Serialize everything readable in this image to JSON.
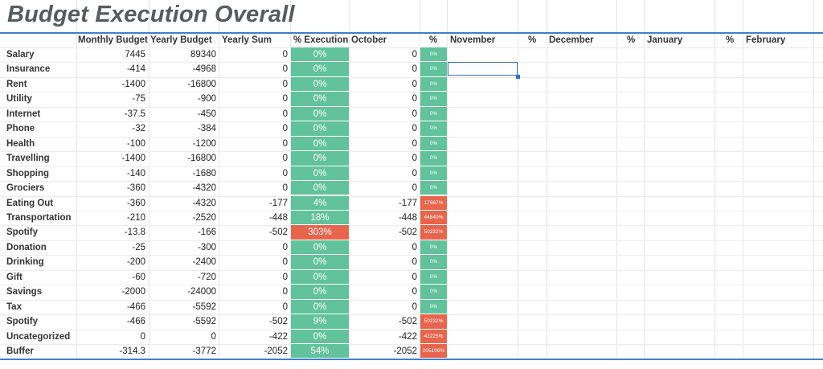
{
  "title": "Budget Execution Overall",
  "colors": {
    "green": "#62c29b",
    "red": "#e8654d",
    "accent": "#3f7fcf"
  },
  "headers": {
    "monthly_budget": "Monthly Budget",
    "yearly_budget": "Yearly Budget",
    "yearly_sum": "Yearly Sum",
    "execution": "% Execution",
    "october": "October",
    "pct1": "%",
    "november": "November",
    "pct2": "%",
    "december": "December",
    "pct3": "%",
    "january": "January",
    "pct4": "%",
    "february": "February"
  },
  "rows": [
    {
      "label": "Salary",
      "monthly": "7445",
      "yearly": "89340",
      "sum": "0",
      "exec": "0%",
      "exec_status": "green",
      "oct": "0",
      "oct_pct": "0%",
      "oct_status": "green"
    },
    {
      "label": "Insurance",
      "monthly": "-414",
      "yearly": "-4968",
      "sum": "0",
      "exec": "0%",
      "exec_status": "green",
      "oct": "0",
      "oct_pct": "0%",
      "oct_status": "green"
    },
    {
      "label": "Rent",
      "monthly": "-1400",
      "yearly": "-16800",
      "sum": "0",
      "exec": "0%",
      "exec_status": "green",
      "oct": "0",
      "oct_pct": "0%",
      "oct_status": "green"
    },
    {
      "label": "Utility",
      "monthly": "-75",
      "yearly": "-900",
      "sum": "0",
      "exec": "0%",
      "exec_status": "green",
      "oct": "0",
      "oct_pct": "0%",
      "oct_status": "green"
    },
    {
      "label": "Internet",
      "monthly": "-37.5",
      "yearly": "-450",
      "sum": "0",
      "exec": "0%",
      "exec_status": "green",
      "oct": "0",
      "oct_pct": "0%",
      "oct_status": "green"
    },
    {
      "label": "Phone",
      "monthly": "-32",
      "yearly": "-384",
      "sum": "0",
      "exec": "0%",
      "exec_status": "green",
      "oct": "0",
      "oct_pct": "0%",
      "oct_status": "green"
    },
    {
      "label": "Health",
      "monthly": "-100",
      "yearly": "-1200",
      "sum": "0",
      "exec": "0%",
      "exec_status": "green",
      "oct": "0",
      "oct_pct": "0%",
      "oct_status": "green"
    },
    {
      "label": "Travelling",
      "monthly": "-1400",
      "yearly": "-16800",
      "sum": "0",
      "exec": "0%",
      "exec_status": "green",
      "oct": "0",
      "oct_pct": "0%",
      "oct_status": "green"
    },
    {
      "label": "Shopping",
      "monthly": "-140",
      "yearly": "-1680",
      "sum": "0",
      "exec": "0%",
      "exec_status": "green",
      "oct": "0",
      "oct_pct": "0%",
      "oct_status": "green"
    },
    {
      "label": "Grociers",
      "monthly": "-360",
      "yearly": "-4320",
      "sum": "0",
      "exec": "0%",
      "exec_status": "green",
      "oct": "0",
      "oct_pct": "0%",
      "oct_status": "green"
    },
    {
      "label": "Eating Out",
      "monthly": "-360",
      "yearly": "-4320",
      "sum": "-177",
      "exec": "4%",
      "exec_status": "green",
      "oct": "-177",
      "oct_pct": "17667%",
      "oct_status": "red"
    },
    {
      "label": "Transportation",
      "monthly": "-210",
      "yearly": "-2520",
      "sum": "-448",
      "exec": "18%",
      "exec_status": "green",
      "oct": "-448",
      "oct_pct": "44840%",
      "oct_status": "red"
    },
    {
      "label": "Spotify",
      "monthly": "-13.8",
      "yearly": "-166",
      "sum": "-502",
      "exec": "303%",
      "exec_status": "red",
      "oct": "-502",
      "oct_pct": "50232%",
      "oct_status": "red"
    },
    {
      "label": "Donation",
      "monthly": "-25",
      "yearly": "-300",
      "sum": "0",
      "exec": "0%",
      "exec_status": "green",
      "oct": "0",
      "oct_pct": "0%",
      "oct_status": "green"
    },
    {
      "label": "Drinking",
      "monthly": "-200",
      "yearly": "-2400",
      "sum": "0",
      "exec": "0%",
      "exec_status": "green",
      "oct": "0",
      "oct_pct": "0%",
      "oct_status": "green"
    },
    {
      "label": "Gift",
      "monthly": "-60",
      "yearly": "-720",
      "sum": "0",
      "exec": "0%",
      "exec_status": "green",
      "oct": "0",
      "oct_pct": "0%",
      "oct_status": "green"
    },
    {
      "label": "Savings",
      "monthly": "-2000",
      "yearly": "-24000",
      "sum": "0",
      "exec": "0%",
      "exec_status": "green",
      "oct": "0",
      "oct_pct": "0%",
      "oct_status": "green"
    },
    {
      "label": "Tax",
      "monthly": "-466",
      "yearly": "-5592",
      "sum": "0",
      "exec": "0%",
      "exec_status": "green",
      "oct": "0",
      "oct_pct": "0%",
      "oct_status": "green"
    },
    {
      "label": "Spotify",
      "monthly": "-466",
      "yearly": "-5592",
      "sum": "-502",
      "exec": "9%",
      "exec_status": "green",
      "oct": "-502",
      "oct_pct": "50232%",
      "oct_status": "red"
    },
    {
      "label": "Uncategorized",
      "monthly": "0",
      "yearly": "0",
      "sum": "-422",
      "exec": "0%",
      "exec_status": "green",
      "oct": "-422",
      "oct_pct": "42225%",
      "oct_status": "red"
    },
    {
      "label": "Buffer",
      "monthly": "-314.3",
      "yearly": "-3772",
      "sum": "-2052",
      "exec": "54%",
      "exec_status": "green",
      "oct": "-2052",
      "oct_pct": "205196%",
      "oct_status": "red"
    }
  ]
}
